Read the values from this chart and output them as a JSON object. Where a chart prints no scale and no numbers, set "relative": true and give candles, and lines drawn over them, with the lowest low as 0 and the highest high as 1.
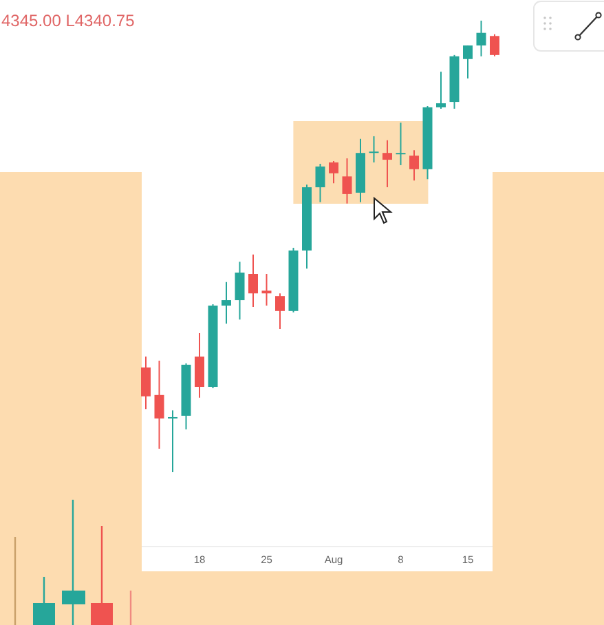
{
  "chart_data": {
    "type": "candlestick",
    "relative": true,
    "categories": [
      null,
      null,
      null,
      null,
      "18",
      null,
      null,
      null,
      null,
      "25",
      null,
      null,
      null,
      null,
      "Aug",
      null,
      null,
      null,
      null,
      "8",
      null,
      null,
      null,
      null,
      "15",
      null,
      null
    ],
    "ohlc": [
      [
        0.232,
        0.256,
        0.14,
        0.168
      ],
      [
        0.171,
        0.247,
        0.052,
        0.119
      ],
      [
        0.119,
        0.137,
        0,
        0.122
      ],
      [
        0.125,
        0.241,
        0.095,
        0.238
      ],
      [
        0.256,
        0.308,
        0.165,
        0.189
      ],
      [
        0.189,
        0.372,
        0.186,
        0.369
      ],
      [
        0.369,
        0.421,
        0.329,
        0.381
      ],
      [
        0.381,
        0.466,
        0.338,
        0.442
      ],
      [
        0.439,
        0.482,
        0.366,
        0.396
      ],
      [
        0.402,
        0.439,
        0.369,
        0.396
      ],
      [
        0.39,
        0.396,
        0.317,
        0.357
      ],
      [
        0.357,
        0.497,
        0.354,
        0.491
      ],
      [
        0.491,
        0.637,
        0.451,
        0.631
      ],
      [
        0.631,
        0.683,
        0.598,
        0.677
      ],
      [
        0.686,
        0.689,
        0.64,
        0.662
      ],
      [
        0.655,
        0.695,
        0.595,
        0.616
      ],
      [
        0.619,
        0.738,
        0.598,
        0.707
      ],
      [
        0.707,
        0.744,
        0.686,
        0.71
      ],
      [
        0.707,
        0.735,
        0.631,
        0.692
      ],
      [
        0.707,
        0.774,
        0.68,
        0.707
      ],
      [
        0.701,
        0.713,
        0.646,
        0.671
      ],
      [
        0.671,
        0.811,
        0.649,
        0.808
      ],
      [
        0.808,
        0.887,
        0.805,
        0.817
      ],
      [
        0.82,
        0.924,
        0.805,
        0.921
      ],
      [
        0.915,
        0.945,
        0.872,
        0.945
      ],
      [
        0.945,
        1,
        0.921,
        0.973
      ],
      [
        0.966,
        0.97,
        0.921,
        0.924
      ]
    ],
    "colors": [
      "#ef5350",
      "#ef5350",
      "#26a69a",
      "#26a69a",
      "#ef5350",
      "#26a69a",
      "#26a69a",
      "#26a69a",
      "#ef5350",
      "#ef5350",
      "#ef5350",
      "#26a69a",
      "#26a69a",
      "#26a69a",
      "#ef5350",
      "#ef5350",
      "#26a69a",
      "#26a69a",
      "#ef5350",
      "#26a69a",
      "#ef5350",
      "#26a69a",
      "#26a69a",
      "#26a69a",
      "#26a69a",
      "#26a69a",
      "#ef5350"
    ],
    "annotations": [
      "4345.00 L4340.75"
    ]
  }
}
